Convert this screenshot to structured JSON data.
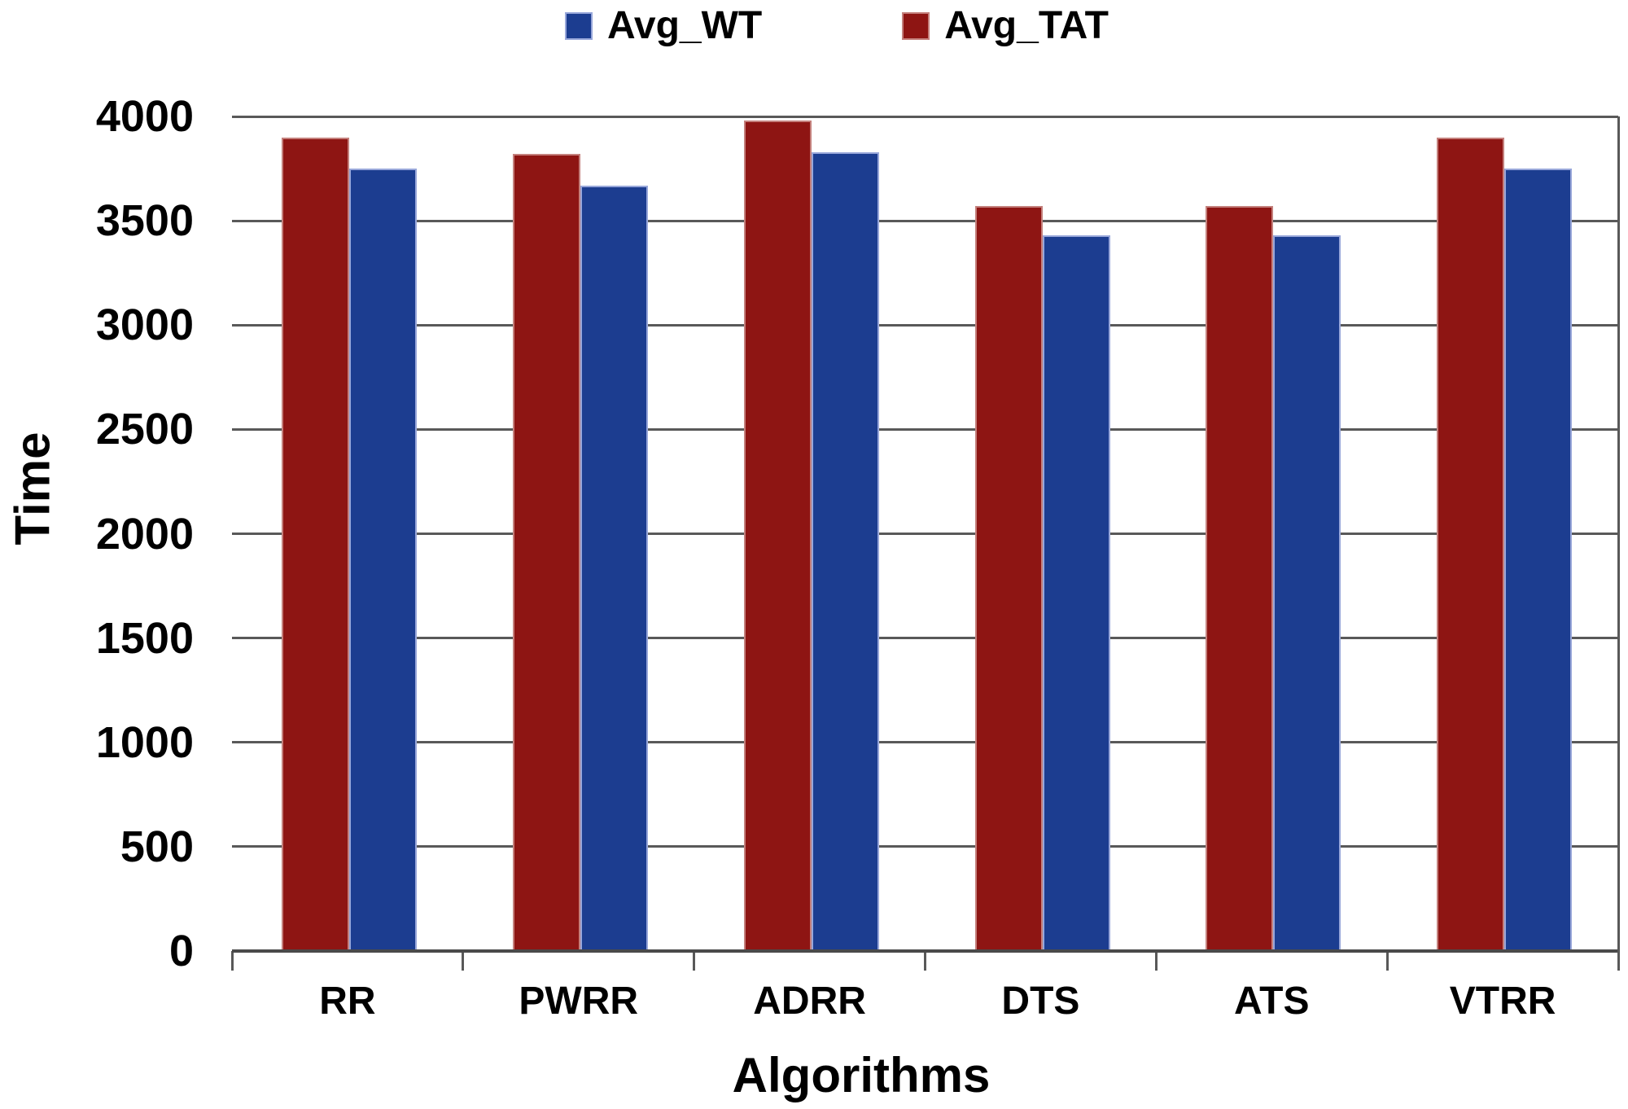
{
  "chart_data": {
    "type": "bar",
    "title": "",
    "xlabel": "Algorithms",
    "ylabel": "Time",
    "categories": [
      "RR",
      "PWRR",
      "ADRR",
      "DTS",
      "ATS",
      "VTRR"
    ],
    "series": [
      {
        "name": "Avg_WT",
        "color": "#1C3D90",
        "border_color": "#98A7DA",
        "values": [
          3750,
          3670,
          3830,
          3430,
          3430,
          3750
        ]
      },
      {
        "name": "Avg_TAT",
        "color": "#8E1513",
        "border_color": "#C4807C",
        "values": [
          3900,
          3820,
          3980,
          3570,
          3570,
          3900
        ]
      }
    ],
    "bar_order_note": "Avg_TAT drawn left of Avg_WT in each group",
    "ylim": [
      0,
      4000
    ],
    "yticks": [
      0,
      500,
      1000,
      1500,
      2000,
      2500,
      3000,
      3500,
      4000
    ],
    "grid": "horizontal",
    "gridline_color": "#595959",
    "axis_color": "#4a4a4a",
    "legend_position": "top-center",
    "background": "#ffffff"
  }
}
